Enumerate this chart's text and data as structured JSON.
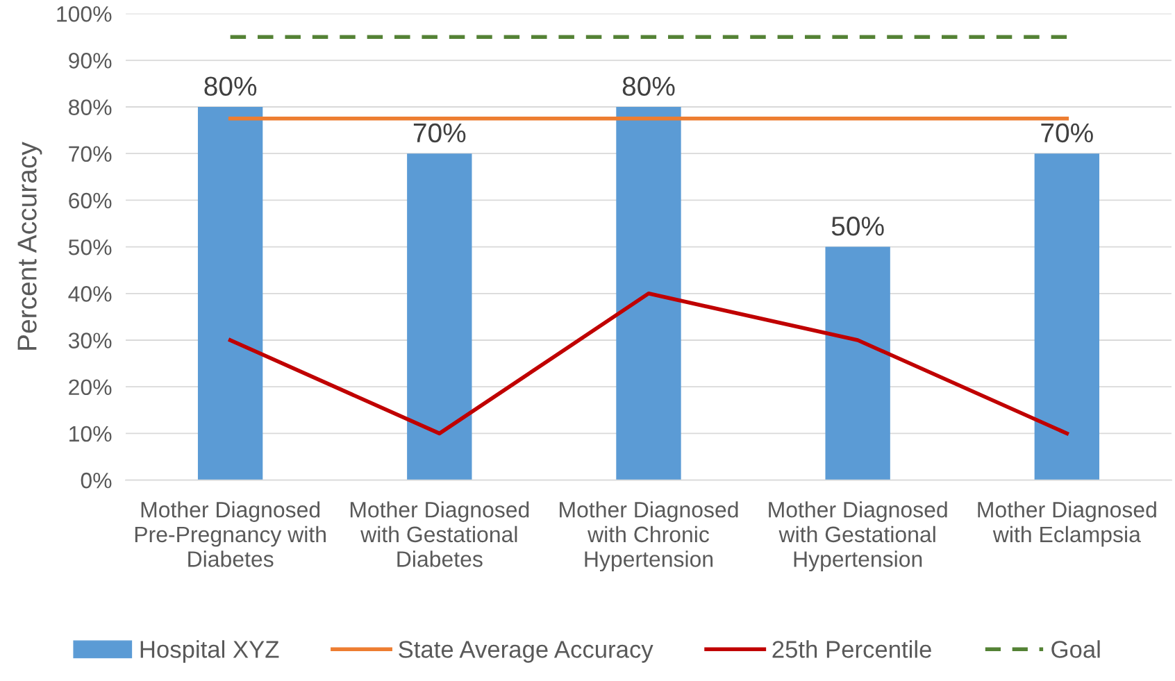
{
  "chart_data": {
    "type": "bar",
    "ylabel": "Percent Accuracy",
    "categories": [
      "Mother Diagnosed Pre-Pregnancy with Diabetes",
      "Mother Diagnosed with Gestational Diabetes",
      "Mother Diagnosed with Chronic Hypertension",
      "Mother Diagnosed with Gestational Hypertension",
      "Mother Diagnosed with Eclampsia"
    ],
    "series": [
      {
        "name": "Hospital XYZ",
        "color": "#5b9bd5",
        "values": [
          80,
          70,
          80,
          50,
          70
        ],
        "value_labels": [
          "80%",
          "70%",
          "80%",
          "50%",
          "70%"
        ]
      },
      {
        "name": "State Average Accuracy",
        "type": "line",
        "color": "#ed7d31",
        "values": [
          77.5,
          77.5,
          77.5,
          77.5,
          77.5
        ],
        "line_style": "solid"
      },
      {
        "name": "25th Percentile",
        "type": "line",
        "color": "#c00000",
        "values": [
          30,
          10,
          40,
          30,
          10
        ],
        "line_style": "solid"
      },
      {
        "name": "Goal",
        "type": "line",
        "color": "#548235",
        "values": [
          95,
          95,
          95,
          95,
          95
        ],
        "line_style": "dashed"
      }
    ],
    "ylim": [
      0,
      100
    ],
    "yticks": [
      {
        "value": 0,
        "label": "0%"
      },
      {
        "value": 10,
        "label": "10%"
      },
      {
        "value": 20,
        "label": "20%"
      },
      {
        "value": 30,
        "label": "30%"
      },
      {
        "value": 40,
        "label": "40%"
      },
      {
        "value": 50,
        "label": "50%"
      },
      {
        "value": 60,
        "label": "60%"
      },
      {
        "value": 70,
        "label": "70%"
      },
      {
        "value": 80,
        "label": "80%"
      },
      {
        "value": 90,
        "label": "90%"
      },
      {
        "value": 100,
        "label": "100%"
      }
    ],
    "grid": "y",
    "legend": "bottom",
    "marker": "none"
  }
}
